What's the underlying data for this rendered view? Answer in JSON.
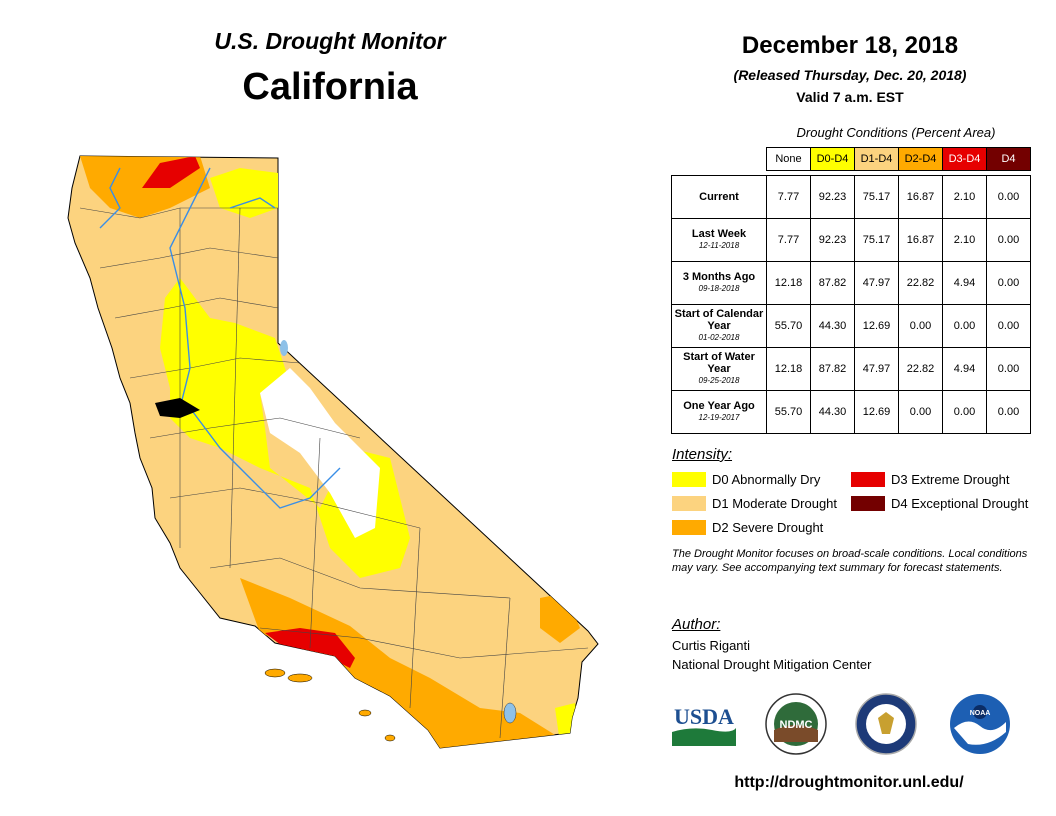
{
  "header": {
    "brand": "U.S. Drought Monitor",
    "region": "California",
    "date": "December 18, 2018",
    "released": "(Released Thursday, Dec. 20, 2018)",
    "valid": "Valid 7 a.m. EST"
  },
  "conditions": {
    "title": "Drought Conditions (Percent Area)",
    "columns": [
      {
        "label": "None",
        "color": "#ffffff",
        "text_color": "#000000"
      },
      {
        "label": "D0-D4",
        "color": "#ffff00",
        "text_color": "#000000"
      },
      {
        "label": "D1-D4",
        "color": "#fcd37f",
        "text_color": "#000000"
      },
      {
        "label": "D2-D4",
        "color": "#ffaa00",
        "text_color": "#000000"
      },
      {
        "label": "D3-D4",
        "color": "#e60000",
        "text_color": "#ffffff"
      },
      {
        "label": "D4",
        "color": "#730000",
        "text_color": "#ffffff"
      }
    ],
    "rows": [
      {
        "label": "Current",
        "date": "",
        "values": [
          "7.77",
          "92.23",
          "75.17",
          "16.87",
          "2.10",
          "0.00"
        ]
      },
      {
        "label": "Last Week",
        "date": "12-11-2018",
        "values": [
          "7.77",
          "92.23",
          "75.17",
          "16.87",
          "2.10",
          "0.00"
        ]
      },
      {
        "label": "3 Months Ago",
        "date": "09-18-2018",
        "values": [
          "12.18",
          "87.82",
          "47.97",
          "22.82",
          "4.94",
          "0.00"
        ]
      },
      {
        "label": "Start of Calendar Year",
        "date": "01-02-2018",
        "values": [
          "55.70",
          "44.30",
          "12.69",
          "0.00",
          "0.00",
          "0.00"
        ]
      },
      {
        "label": "Start of Water Year",
        "date": "09-25-2018",
        "values": [
          "12.18",
          "87.82",
          "47.97",
          "22.82",
          "4.94",
          "0.00"
        ]
      },
      {
        "label": "One Year Ago",
        "date": "12-19-2017",
        "values": [
          "55.70",
          "44.30",
          "12.69",
          "0.00",
          "0.00",
          "0.00"
        ]
      }
    ]
  },
  "legend": {
    "title": "Intensity:",
    "items": [
      {
        "label": "D0 Abnormally Dry",
        "color": "#ffff00"
      },
      {
        "label": "D1 Moderate Drought",
        "color": "#fcd37f"
      },
      {
        "label": "D2 Severe Drought",
        "color": "#ffaa00"
      },
      {
        "label": "D3 Extreme Drought",
        "color": "#e60000"
      },
      {
        "label": "D4 Exceptional Drought",
        "color": "#730000"
      }
    ]
  },
  "note": "The Drought Monitor focuses on broad-scale conditions. Local conditions may vary. See accompanying text summary for forecast statements.",
  "author": {
    "title": "Author:",
    "name": "Curtis Riganti",
    "org": "National Drought Mitigation Center"
  },
  "logos": {
    "usda": "USDA",
    "ndmc": "NDMC",
    "noaa": "NOAA"
  },
  "url": "http://droughtmonitor.unl.edu/",
  "map_colors": {
    "d0": "#ffff00",
    "d1": "#fcd37f",
    "d2": "#ffaa00",
    "d3": "#e60000",
    "none": "#ffffff",
    "water": "#8ec1e8",
    "river": "#3a8ee6"
  }
}
